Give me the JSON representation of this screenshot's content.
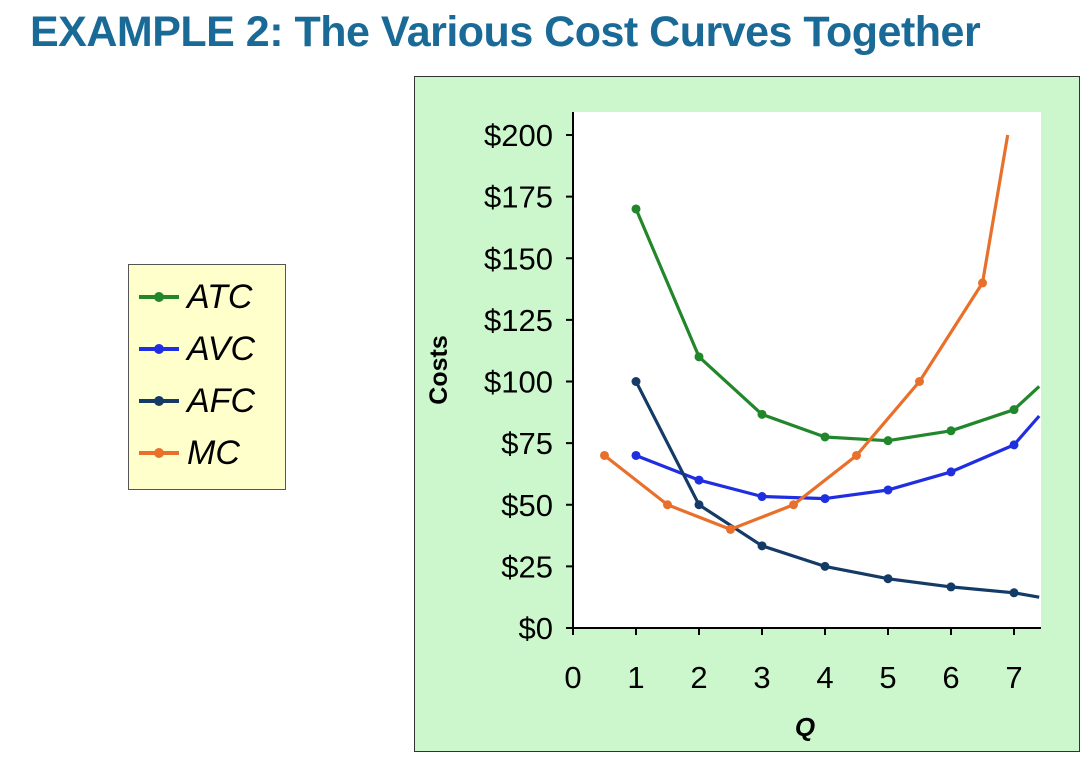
{
  "title": "EXAMPLE 2:  The Various Cost Curves Together",
  "legend": {
    "items": [
      {
        "label": "ATC",
        "color": "#22862b"
      },
      {
        "label": "AVC",
        "color": "#1f2ee0"
      },
      {
        "label": "AFC",
        "color": "#143a66"
      },
      {
        "label": "MC",
        "color": "#e8702a"
      }
    ]
  },
  "chart_data": {
    "type": "line",
    "xlabel": "Q",
    "ylabel": "Costs",
    "xlim": [
      0,
      7.4
    ],
    "ylim": [
      0,
      200
    ],
    "x_ticks": [
      "0",
      "1",
      "2",
      "3",
      "4",
      "5",
      "6",
      "7"
    ],
    "y_ticks": [
      "$0",
      "$25",
      "$50",
      "$75",
      "$100",
      "$125",
      "$150",
      "$175",
      "$200"
    ],
    "grid": false,
    "legend_position": "left",
    "series": [
      {
        "name": "ATC",
        "color": "#22862b",
        "x": [
          1,
          2,
          3,
          4,
          5,
          6,
          7
        ],
        "y": [
          170,
          110,
          86.67,
          77.5,
          76,
          80,
          88.57
        ],
        "extend_to": [
          7.4,
          98
        ]
      },
      {
        "name": "AVC",
        "color": "#1f2ee0",
        "x": [
          1,
          2,
          3,
          4,
          5,
          6,
          7
        ],
        "y": [
          70,
          60,
          53.33,
          52.5,
          56,
          63.33,
          74.29
        ],
        "extend_to": [
          7.4,
          86
        ]
      },
      {
        "name": "AFC",
        "color": "#143a66",
        "x": [
          1,
          2,
          3,
          4,
          5,
          6,
          7
        ],
        "y": [
          100,
          50,
          33.33,
          25,
          20,
          16.67,
          14.29
        ],
        "extend_to": [
          7.4,
          12.5
        ]
      },
      {
        "name": "MC",
        "color": "#e8702a",
        "x": [
          0.5,
          1.5,
          2.5,
          3.5,
          4.5,
          5.5,
          6.5
        ],
        "y": [
          70,
          50,
          40,
          50,
          70,
          100,
          140
        ],
        "extend_to": [
          6.5,
          140
        ],
        "end_point": [
          6.9,
          200
        ]
      }
    ]
  }
}
